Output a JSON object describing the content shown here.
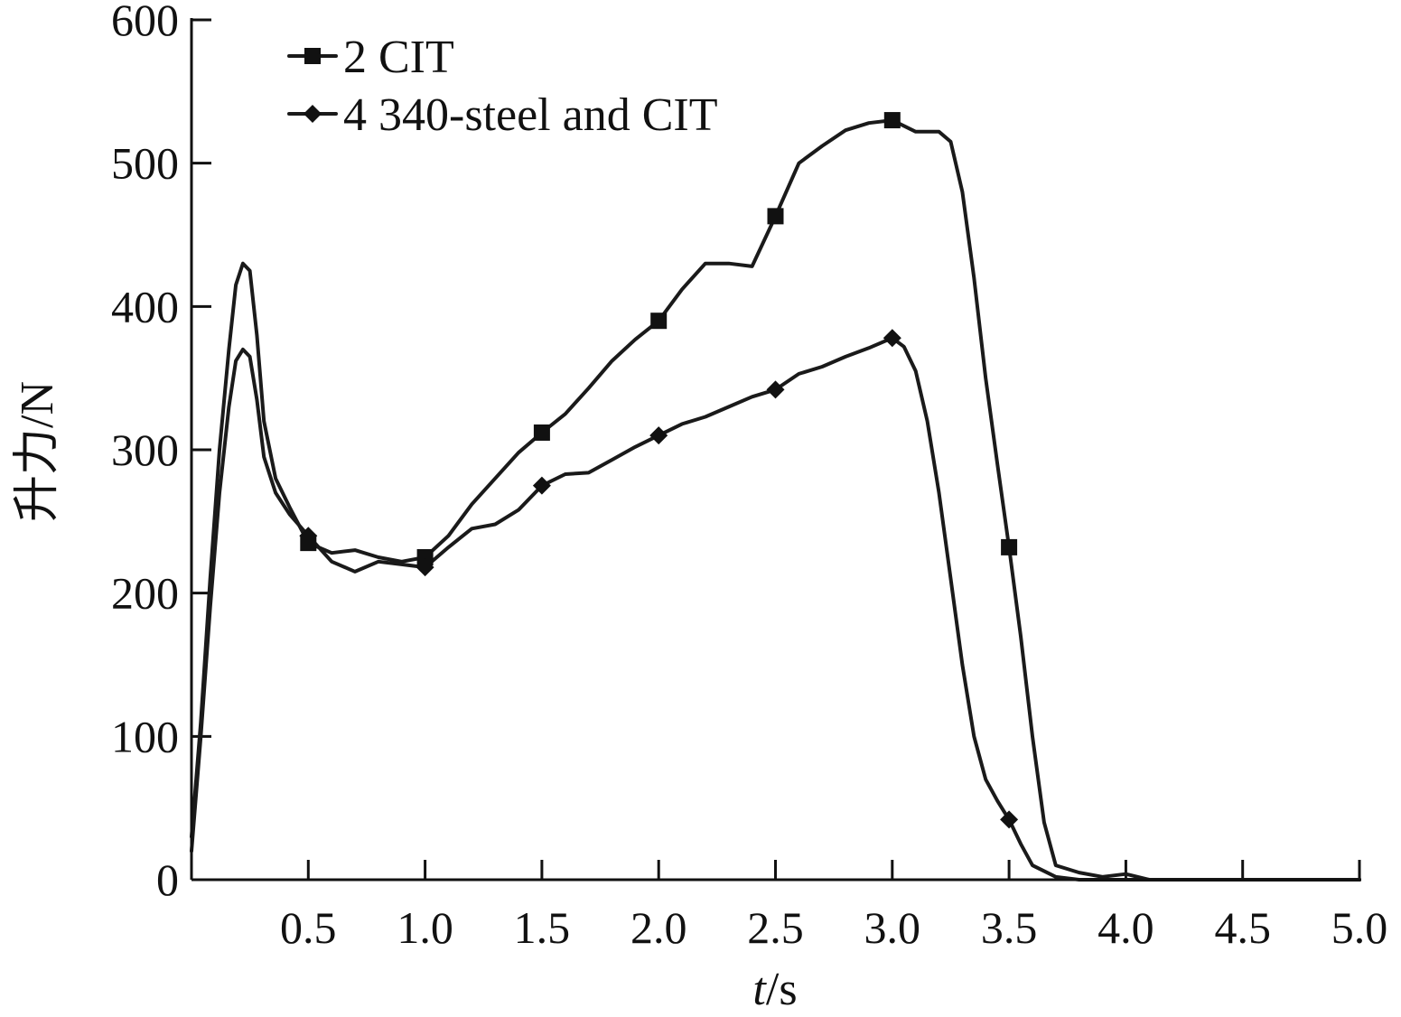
{
  "chart_data": {
    "type": "line",
    "xlabel_italic": "t",
    "xlabel_unit": "/s",
    "ylabel": "升力/N",
    "xlim": [
      0,
      5.0
    ],
    "ylim": [
      0,
      600
    ],
    "x_ticks": [
      "0.5",
      "1.0",
      "1.5",
      "2.0",
      "2.5",
      "3.0",
      "3.5",
      "4.0",
      "4.5",
      "5.0"
    ],
    "y_ticks": [
      "0",
      "100",
      "200",
      "300",
      "400",
      "500",
      "600"
    ],
    "legend_position": "top-left",
    "series": [
      {
        "name": "2 CIT",
        "marker": "square",
        "marker_x": [
          0.5,
          1.0,
          1.5,
          2.0,
          2.5,
          3.0,
          3.5
        ],
        "points": [
          [
            0.0,
            30
          ],
          [
            0.04,
            110
          ],
          [
            0.08,
            210
          ],
          [
            0.12,
            300
          ],
          [
            0.16,
            370
          ],
          [
            0.19,
            415
          ],
          [
            0.22,
            430
          ],
          [
            0.25,
            425
          ],
          [
            0.28,
            380
          ],
          [
            0.31,
            320
          ],
          [
            0.36,
            280
          ],
          [
            0.42,
            260
          ],
          [
            0.5,
            235
          ],
          [
            0.6,
            228
          ],
          [
            0.7,
            230
          ],
          [
            0.8,
            225
          ],
          [
            0.9,
            222
          ],
          [
            1.0,
            225
          ],
          [
            1.1,
            240
          ],
          [
            1.2,
            262
          ],
          [
            1.3,
            280
          ],
          [
            1.4,
            298
          ],
          [
            1.5,
            312
          ],
          [
            1.6,
            325
          ],
          [
            1.7,
            343
          ],
          [
            1.8,
            362
          ],
          [
            1.9,
            377
          ],
          [
            2.0,
            390
          ],
          [
            2.1,
            412
          ],
          [
            2.2,
            430
          ],
          [
            2.3,
            430
          ],
          [
            2.4,
            428
          ],
          [
            2.5,
            463
          ],
          [
            2.6,
            500
          ],
          [
            2.7,
            512
          ],
          [
            2.8,
            523
          ],
          [
            2.9,
            528
          ],
          [
            3.0,
            530
          ],
          [
            3.1,
            522
          ],
          [
            3.2,
            522
          ],
          [
            3.25,
            515
          ],
          [
            3.3,
            480
          ],
          [
            3.35,
            420
          ],
          [
            3.4,
            350
          ],
          [
            3.45,
            290
          ],
          [
            3.5,
            232
          ],
          [
            3.55,
            170
          ],
          [
            3.6,
            100
          ],
          [
            3.65,
            40
          ],
          [
            3.7,
            10
          ],
          [
            3.8,
            5
          ],
          [
            3.9,
            2
          ],
          [
            4.0,
            4
          ],
          [
            4.1,
            0
          ],
          [
            5.0,
            0
          ]
        ]
      },
      {
        "name": "4 340-steel and CIT",
        "marker": "diamond",
        "marker_x": [
          0.5,
          1.0,
          1.5,
          2.0,
          2.5,
          3.0,
          3.5
        ],
        "points": [
          [
            0.0,
            20
          ],
          [
            0.04,
            100
          ],
          [
            0.08,
            190
          ],
          [
            0.12,
            270
          ],
          [
            0.16,
            330
          ],
          [
            0.19,
            362
          ],
          [
            0.22,
            370
          ],
          [
            0.25,
            365
          ],
          [
            0.28,
            335
          ],
          [
            0.31,
            295
          ],
          [
            0.36,
            270
          ],
          [
            0.42,
            255
          ],
          [
            0.5,
            240
          ],
          [
            0.6,
            222
          ],
          [
            0.7,
            215
          ],
          [
            0.8,
            222
          ],
          [
            0.9,
            220
          ],
          [
            1.0,
            218
          ],
          [
            1.1,
            232
          ],
          [
            1.2,
            245
          ],
          [
            1.3,
            248
          ],
          [
            1.4,
            258
          ],
          [
            1.5,
            275
          ],
          [
            1.6,
            283
          ],
          [
            1.7,
            284
          ],
          [
            1.8,
            293
          ],
          [
            1.9,
            302
          ],
          [
            2.0,
            310
          ],
          [
            2.1,
            318
          ],
          [
            2.2,
            323
          ],
          [
            2.3,
            330
          ],
          [
            2.4,
            337
          ],
          [
            2.5,
            342
          ],
          [
            2.6,
            353
          ],
          [
            2.7,
            358
          ],
          [
            2.8,
            365
          ],
          [
            2.9,
            371
          ],
          [
            3.0,
            378
          ],
          [
            3.05,
            372
          ],
          [
            3.1,
            355
          ],
          [
            3.15,
            320
          ],
          [
            3.2,
            270
          ],
          [
            3.25,
            210
          ],
          [
            3.3,
            150
          ],
          [
            3.35,
            100
          ],
          [
            3.4,
            70
          ],
          [
            3.45,
            55
          ],
          [
            3.5,
            42
          ],
          [
            3.55,
            25
          ],
          [
            3.6,
            10
          ],
          [
            3.7,
            2
          ],
          [
            3.8,
            0
          ],
          [
            5.0,
            0
          ]
        ]
      }
    ]
  }
}
